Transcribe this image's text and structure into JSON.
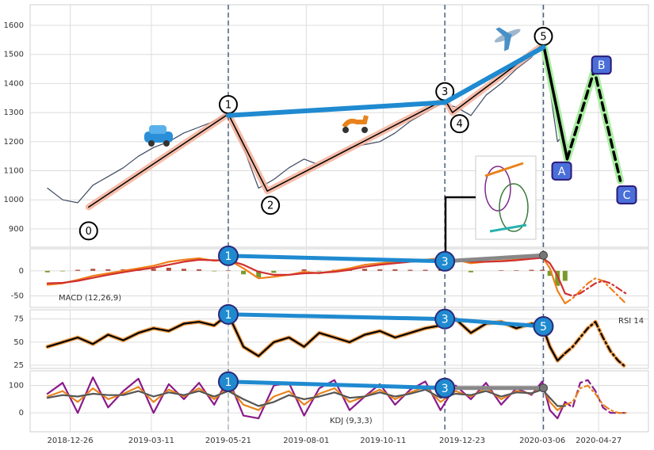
{
  "chart_data": [
    {
      "type": "line",
      "x": [
        "2018-12-05",
        "2018-12-19",
        "2019-01-02",
        "2019-01-16",
        "2019-01-30",
        "2019-02-13",
        "2019-02-27",
        "2019-03-13",
        "2019-03-27",
        "2019-04-10",
        "2019-04-24",
        "2019-05-08",
        "2019-05-21",
        "2019-06-04",
        "2019-06-18",
        "2019-07-02",
        "2019-07-16",
        "2019-07-30",
        "2019-08-13",
        "2019-08-27",
        "2019-09-10",
        "2019-09-24",
        "2019-10-08",
        "2019-10-22",
        "2019-11-05",
        "2019-11-19",
        "2019-12-03",
        "2019-12-17",
        "2019-12-31",
        "2020-01-14",
        "2020-01-28",
        "2020-02-11",
        "2020-02-25",
        "2020-03-06",
        "2020-03-13",
        "2020-03-20",
        "2020-03-27"
      ],
      "series": [
        {
          "color": "#3d4a63",
          "values": [
            1040,
            1000,
            990,
            1050,
            1080,
            1110,
            1150,
            1180,
            1200,
            1230,
            1250,
            1270,
            1300,
            1180,
            1040,
            1070,
            1110,
            1140,
            1120,
            1150,
            1180,
            1190,
            1200,
            1230,
            1270,
            1300,
            1330,
            1320,
            1290,
            1360,
            1400,
            1450,
            1490,
            1540,
            1380,
            1200,
            1230
          ]
        }
      ],
      "xlim": [
        "2018-11-19",
        "2020-06-12"
      ],
      "ylim": [
        837,
        1671
      ],
      "yticks": [
        900,
        1000,
        1100,
        1200,
        1300,
        1400,
        1500,
        1600
      ],
      "grid": true,
      "waves": {
        "x": [
          "2019-01-12",
          "2019-05-21",
          "2019-06-26",
          "2019-12-07",
          "2019-12-14",
          "2020-03-07"
        ],
        "values": [
          975,
          1295,
          1030,
          1345,
          1300,
          1535
        ],
        "labels": [
          "0",
          "1",
          "2",
          "3",
          "4",
          "5"
        ],
        "color": "#000000",
        "halo": "#f4b09a"
      },
      "corrective": {
        "x": [
          "2020-03-29",
          "2020-04-23",
          "2020-05-17"
        ],
        "values": [
          1140,
          1447,
          1066
        ],
        "labels": [
          "A",
          "B",
          "C"
        ],
        "color": "#000000",
        "halo": "#a8eea0",
        "box": "#4a6fd8"
      },
      "trend": {
        "x": [
          "2019-05-21",
          "2019-12-07",
          "2020-03-07"
        ],
        "values": [
          1290,
          1335,
          1525
        ],
        "color": "#1f8ad0"
      }
    },
    {
      "type": "line",
      "label": "MACD (12,26,9)",
      "x": [
        "2018-12-05",
        "2018-12-19",
        "2019-01-02",
        "2019-01-16",
        "2019-01-30",
        "2019-02-13",
        "2019-02-27",
        "2019-03-13",
        "2019-03-27",
        "2019-04-10",
        "2019-04-24",
        "2019-05-08",
        "2019-05-21",
        "2019-06-04",
        "2019-06-18",
        "2019-07-02",
        "2019-07-16",
        "2019-07-30",
        "2019-08-13",
        "2019-08-27",
        "2019-09-10",
        "2019-09-24",
        "2019-10-08",
        "2019-10-22",
        "2019-11-05",
        "2019-11-19",
        "2019-12-03",
        "2019-12-17",
        "2019-12-31",
        "2020-01-14",
        "2020-01-28",
        "2020-02-11",
        "2020-02-25",
        "2020-03-06",
        "2020-03-13",
        "2020-03-20",
        "2020-03-27"
      ],
      "bars": {
        "values": [
          -3,
          -1,
          2,
          4,
          3,
          3,
          3,
          4,
          6,
          4,
          3,
          -1,
          1,
          -7,
          -13,
          -4,
          0,
          3,
          -1,
          2,
          3,
          4,
          3,
          3,
          2,
          2,
          3,
          0,
          -3,
          0,
          1,
          1,
          2,
          2,
          -10,
          -30,
          -20
        ],
        "up": "#b04a3a",
        "down": "#7a9a2a"
      },
      "series": [
        {
          "color": "#f07f1a",
          "values": [
            -28,
            -25,
            -18,
            -10,
            -5,
            0,
            5,
            10,
            18,
            22,
            25,
            20,
            22,
            5,
            -15,
            -12,
            -8,
            -2,
            -5,
            0,
            5,
            12,
            15,
            18,
            20,
            22,
            25,
            22,
            15,
            18,
            20,
            22,
            26,
            28,
            5,
            -40,
            -65
          ]
        },
        {
          "color": "#d03030",
          "values": [
            -25,
            -24,
            -20,
            -14,
            -8,
            -3,
            2,
            6,
            12,
            18,
            22,
            21,
            21,
            12,
            -2,
            -8,
            -8,
            -5,
            -4,
            -2,
            2,
            8,
            12,
            15,
            18,
            20,
            22,
            22,
            18,
            18,
            19,
            21,
            24,
            26,
            15,
            -10,
            -45
          ]
        },
        {
          "color": "#f07f1a",
          "dash": "dashdot",
          "x": [
            "2020-03-27",
            "2020-04-03",
            "2020-04-10",
            "2020-04-17",
            "2020-04-24",
            "2020-05-01",
            "2020-05-08",
            "2020-05-15",
            "2020-05-22"
          ],
          "values": [
            -65,
            -55,
            -40,
            -25,
            -15,
            -20,
            -35,
            -50,
            -65
          ]
        },
        {
          "color": "#d03030",
          "dash": "dashdot",
          "x": [
            "2020-03-27",
            "2020-04-03",
            "2020-04-10",
            "2020-04-17",
            "2020-04-24",
            "2020-05-01",
            "2020-05-08",
            "2020-05-15",
            "2020-05-22"
          ],
          "values": [
            -45,
            -50,
            -45,
            -35,
            -25,
            -20,
            -25,
            -35,
            -45
          ]
        }
      ],
      "xlim": [
        "2018-11-19",
        "2020-06-12"
      ],
      "ylim": [
        -73,
        44
      ],
      "yticks": [
        -50,
        0
      ],
      "grid": true,
      "trend": {
        "x": [
          "2019-05-21",
          "2019-12-07"
        ],
        "values": [
          30,
          19
        ],
        "labels": [
          "1",
          "3"
        ],
        "color": "#1f8ad0"
      },
      "extension": {
        "x": [
          "2019-12-07",
          "2020-03-07"
        ],
        "values": [
          19,
          31
        ],
        "color": "#888888"
      }
    },
    {
      "type": "line",
      "label": "RSI 14",
      "x": [
        "2018-12-05",
        "2018-12-19",
        "2019-01-02",
        "2019-01-16",
        "2019-01-30",
        "2019-02-13",
        "2019-02-27",
        "2019-03-13",
        "2019-03-27",
        "2019-04-10",
        "2019-04-24",
        "2019-05-08",
        "2019-05-21",
        "2019-06-04",
        "2019-06-18",
        "2019-07-02",
        "2019-07-16",
        "2019-07-30",
        "2019-08-13",
        "2019-08-27",
        "2019-09-10",
        "2019-09-24",
        "2019-10-08",
        "2019-10-22",
        "2019-11-05",
        "2019-11-19",
        "2019-12-03",
        "2019-12-17",
        "2019-12-31",
        "2020-01-14",
        "2020-01-28",
        "2020-02-11",
        "2020-02-25",
        "2020-03-06",
        "2020-03-13",
        "2020-03-20",
        "2020-03-27"
      ],
      "series": [
        {
          "color": "#000000",
          "halo": "#f0a050",
          "values": [
            45,
            50,
            55,
            48,
            58,
            52,
            60,
            65,
            62,
            70,
            72,
            68,
            80,
            45,
            35,
            50,
            55,
            45,
            60,
            55,
            50,
            58,
            62,
            55,
            60,
            65,
            68,
            75,
            60,
            70,
            72,
            65,
            70,
            68,
            45,
            30,
            38
          ]
        },
        {
          "color": "#000000",
          "halo": "#f0a050",
          "dash": "dashdot",
          "x": [
            "2020-03-27",
            "2020-04-03",
            "2020-04-10",
            "2020-04-17",
            "2020-04-24",
            "2020-05-01",
            "2020-05-08",
            "2020-05-15",
            "2020-05-22"
          ],
          "values": [
            38,
            45,
            55,
            65,
            72,
            55,
            40,
            30,
            23
          ]
        }
      ],
      "xlim": [
        "2018-11-19",
        "2020-06-12"
      ],
      "ylim": [
        21.6,
        85
      ],
      "yticks": [
        25,
        50,
        75
      ],
      "grid": true,
      "trend": {
        "x": [
          "2019-05-21",
          "2019-12-07",
          "2020-03-07"
        ],
        "values": [
          80,
          75,
          67
        ],
        "labels": [
          "1",
          "3",
          "5"
        ],
        "color": "#1f8ad0"
      }
    },
    {
      "type": "line",
      "label": "KDJ (9,3,3)",
      "x": [
        "2018-12-05",
        "2018-12-19",
        "2019-01-02",
        "2019-01-16",
        "2019-01-30",
        "2019-02-13",
        "2019-02-27",
        "2019-03-13",
        "2019-03-27",
        "2019-04-10",
        "2019-04-24",
        "2019-05-08",
        "2019-05-21",
        "2019-06-04",
        "2019-06-18",
        "2019-07-02",
        "2019-07-16",
        "2019-07-30",
        "2019-08-13",
        "2019-08-27",
        "2019-09-10",
        "2019-09-24",
        "2019-10-08",
        "2019-10-22",
        "2019-11-05",
        "2019-11-19",
        "2019-12-03",
        "2019-12-17",
        "2019-12-31",
        "2020-01-14",
        "2020-01-28",
        "2020-02-11",
        "2020-02-25",
        "2020-03-06",
        "2020-03-13",
        "2020-03-20",
        "2020-03-27"
      ],
      "series": [
        {
          "color": "#8a1a8a",
          "values": [
            70,
            110,
            0,
            130,
            20,
            80,
            125,
            0,
            105,
            50,
            110,
            30,
            125,
            -10,
            -20,
            100,
            110,
            -10,
            90,
            120,
            10,
            60,
            105,
            30,
            85,
            115,
            10,
            100,
            50,
            110,
            30,
            90,
            66,
            115,
            10,
            -20,
            40
          ]
        },
        {
          "color": "#e8831c",
          "values": [
            60,
            80,
            40,
            90,
            50,
            70,
            95,
            40,
            85,
            60,
            90,
            50,
            95,
            30,
            10,
            60,
            80,
            30,
            70,
            90,
            40,
            60,
            85,
            50,
            75,
            95,
            40,
            80,
            60,
            90,
            50,
            80,
            70,
            95,
            40,
            10,
            30
          ]
        },
        {
          "color": "#555555",
          "values": [
            55,
            65,
            60,
            70,
            65,
            65,
            80,
            60,
            75,
            65,
            80,
            60,
            80,
            50,
            25,
            40,
            65,
            50,
            60,
            75,
            55,
            60,
            75,
            60,
            70,
            85,
            55,
            70,
            65,
            80,
            60,
            75,
            72,
            85,
            55,
            25,
            25
          ]
        },
        {
          "color": "#8a1a8a",
          "dash": "dashed",
          "x": [
            "2020-03-27",
            "2020-04-03",
            "2020-04-10",
            "2020-04-17",
            "2020-04-24",
            "2020-05-01",
            "2020-05-08",
            "2020-05-15",
            "2020-05-22"
          ],
          "values": [
            40,
            20,
            110,
            120,
            80,
            20,
            0,
            0,
            0
          ]
        },
        {
          "color": "#e8831c",
          "dash": "dashdot",
          "x": [
            "2020-03-27",
            "2020-04-03",
            "2020-04-10",
            "2020-04-17",
            "2020-04-24",
            "2020-05-01",
            "2020-05-08",
            "2020-05-15",
            "2020-05-22"
          ],
          "values": [
            30,
            40,
            90,
            100,
            70,
            30,
            10,
            0,
            0
          ]
        }
      ],
      "xlim": [
        "2018-11-19",
        "2020-06-12"
      ],
      "ylim": [
        -69,
        154
      ],
      "yticks": [
        0,
        100
      ],
      "grid": true,
      "xticks": [
        "2018-12-26",
        "2019-03-11",
        "2019-05-21",
        "2019-08-01",
        "2019-10-11",
        "2019-12-23",
        "2020-03-06",
        "2020-04-27"
      ],
      "trend": {
        "x": [
          "2019-05-21",
          "2019-12-07"
        ],
        "values": [
          114,
          91
        ],
        "labels": [
          "1",
          "3"
        ],
        "color": "#1f8ad0"
      },
      "extension": {
        "x": [
          "2019-12-07",
          "2020-03-07"
        ],
        "values": [
          91,
          91
        ],
        "color": "#888888"
      }
    }
  ]
}
